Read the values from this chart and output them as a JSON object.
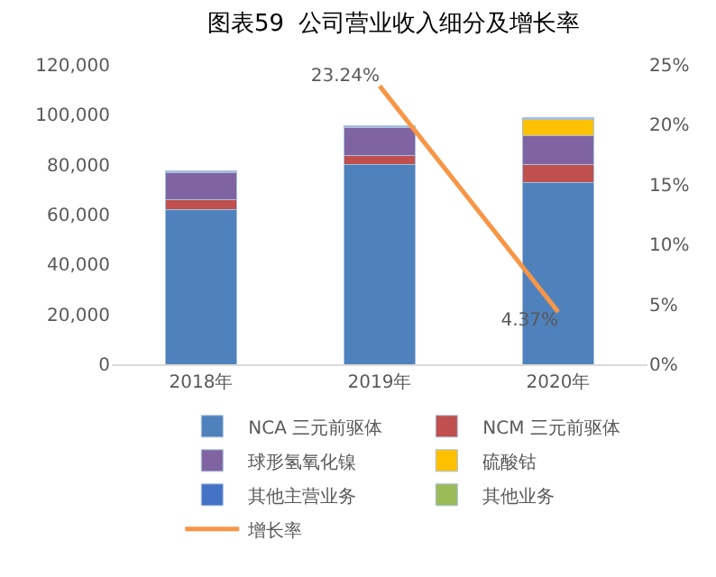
{
  "chart_data": {
    "type": "bar",
    "title": "图表59  公司营业收入细分及增长率",
    "categories": [
      "2018年",
      "2019年",
      "2020年"
    ],
    "stacked": true,
    "series": [
      {
        "name": "NCA 三元前驱体",
        "color": "#4f81bd",
        "values": [
          62000,
          80000,
          72700
        ]
      },
      {
        "name": "NCM 三元前驱体",
        "color": "#c0504d",
        "values": [
          4000,
          3500,
          7300
        ]
      },
      {
        "name": "球形氢氧化镍",
        "color": "#8064a2",
        "values": [
          10800,
          11500,
          11600
        ]
      },
      {
        "name": "硫酸钴",
        "color": "#ffc000",
        "values": [
          null,
          null,
          6700
        ]
      },
      {
        "name": "其他主营业务",
        "color": "#4472c4",
        "values": [
          300,
          300,
          300
        ]
      },
      {
        "name": "其他业务",
        "color": "#9bbb59",
        "values": [
          300,
          300,
          400
        ]
      },
      {
        "name": "增长率",
        "type": "line",
        "axis": "y2",
        "color": "#f79646",
        "values": [
          null,
          23.24,
          4.37
        ],
        "value_labels": [
          null,
          "23.24%",
          "4.37%"
        ]
      }
    ],
    "ylim": [
      0,
      120000
    ],
    "yticks": [
      {
        "value": 0,
        "label": "0"
      },
      {
        "value": 20000,
        "label": "20,000"
      },
      {
        "value": 40000,
        "label": "40,000"
      },
      {
        "value": 60000,
        "label": "60,000"
      },
      {
        "value": 80000,
        "label": "80,000"
      },
      {
        "value": 100000,
        "label": "100,000"
      },
      {
        "value": 120000,
        "label": "120,000"
      }
    ],
    "y2lim": [
      0,
      25
    ],
    "y2ticks": [
      {
        "value": 0,
        "label": "0%"
      },
      {
        "value": 5,
        "label": "5%"
      },
      {
        "value": 10,
        "label": "10%"
      },
      {
        "value": 15,
        "label": "15%"
      },
      {
        "value": 20,
        "label": "20%"
      },
      {
        "value": 25,
        "label": "25%"
      }
    ],
    "grid": false,
    "legend": "bottom",
    "marker": "none",
    "line_style": "solid"
  }
}
